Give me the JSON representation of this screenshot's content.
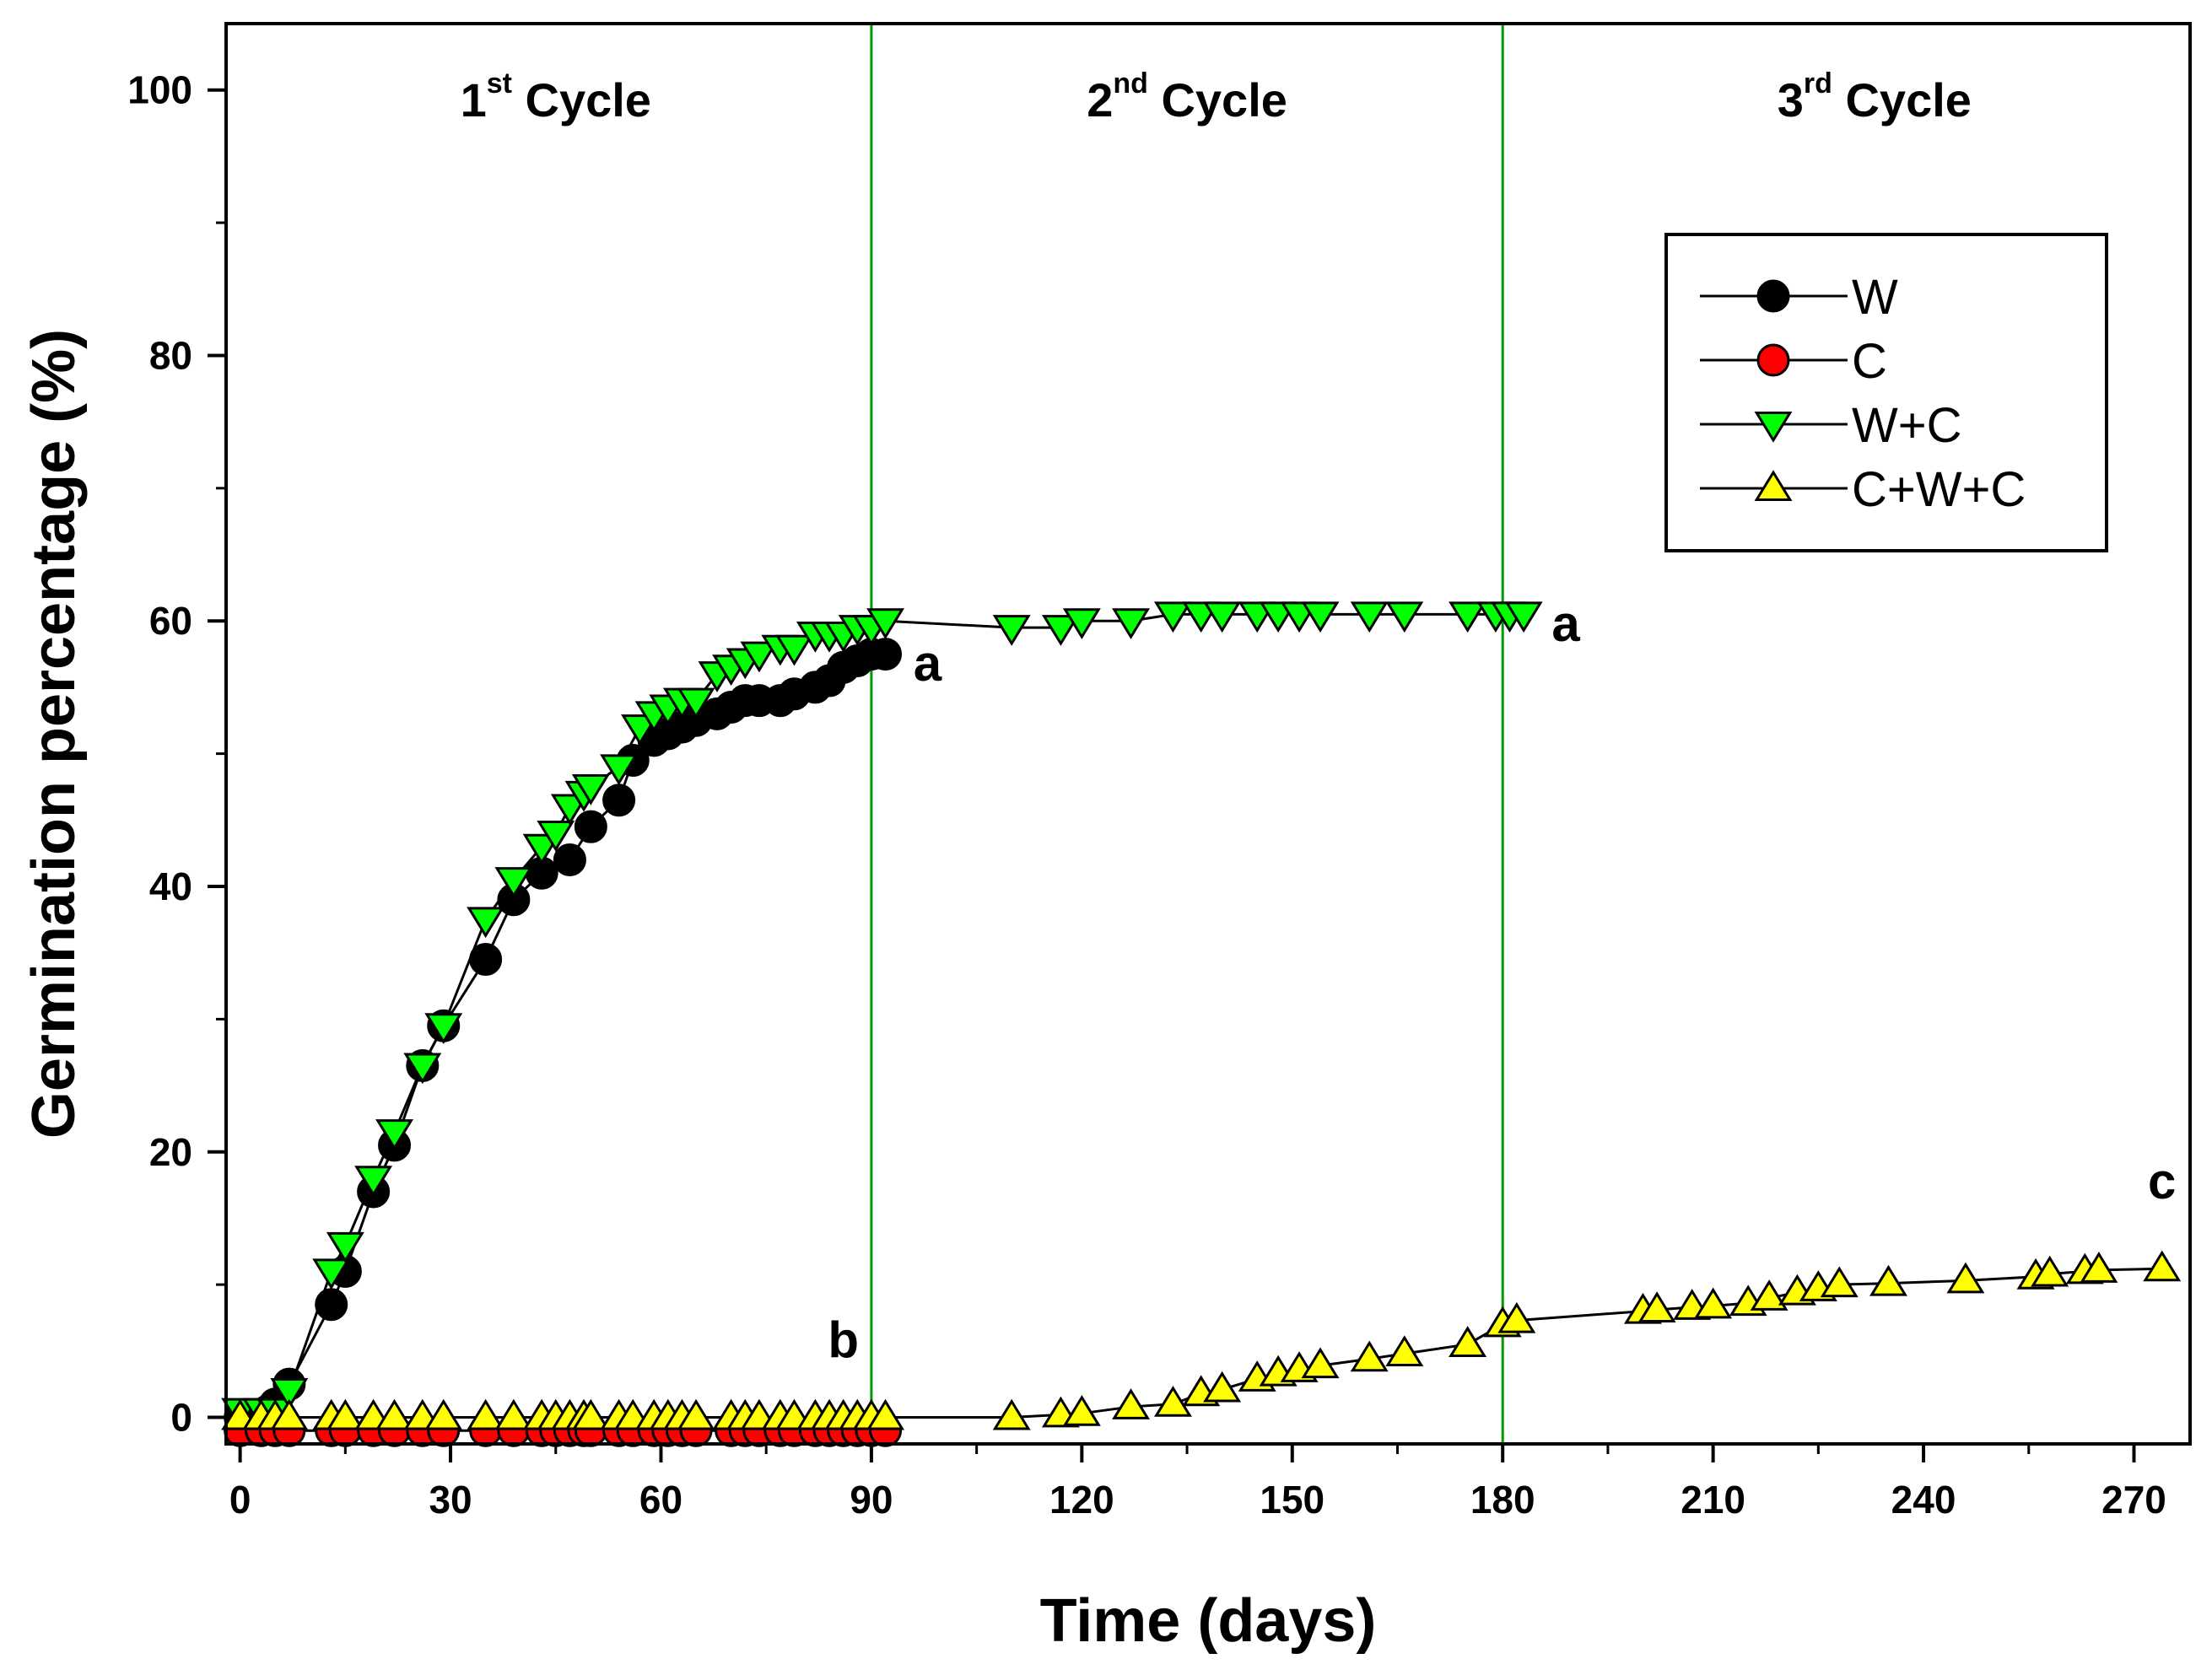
{
  "chart_data": {
    "type": "line",
    "xlabel": "Time (days)",
    "ylabel": "Germination percentage (%)",
    "xlim": [
      -2,
      278
    ],
    "ylim": [
      -2,
      105
    ],
    "xticks": [
      0,
      30,
      60,
      90,
      120,
      150,
      180,
      210,
      240,
      270
    ],
    "yticks": [
      0,
      20,
      40,
      60,
      80,
      100
    ],
    "cycle_dividers": [
      90,
      180
    ],
    "cycles": [
      {
        "base": "1",
        "sup": "st",
        "rest": " Cycle",
        "x": 45
      },
      {
        "base": "2",
        "sup": "nd",
        "rest": " Cycle",
        "x": 135
      },
      {
        "base": "3",
        "sup": "rd",
        "rest": " Cycle",
        "x": 233
      }
    ],
    "legend": {
      "position": "top-right",
      "entries": [
        "W",
        "C",
        "W+C",
        "C+W+C"
      ]
    },
    "annotations": [
      {
        "text": "a",
        "x": 98,
        "y": 55.5
      },
      {
        "text": "a",
        "x": 189,
        "y": 58.5
      },
      {
        "text": "b",
        "x": 86,
        "y": 4.5
      },
      {
        "text": "c",
        "x": 274,
        "y": 16.5
      }
    ],
    "series": [
      {
        "name": "W",
        "marker": "circle",
        "color": "#000000",
        "x": [
          0,
          2,
          4,
          5,
          7,
          13,
          15,
          19,
          22,
          26,
          29,
          35,
          39,
          43,
          47,
          50,
          54,
          56,
          59,
          61,
          63,
          65,
          68,
          70,
          72,
          74,
          77,
          79,
          82,
          84,
          86,
          88,
          90,
          92
        ],
        "y": [
          0,
          0,
          0.5,
          1,
          2.5,
          8.5,
          11,
          17,
          20.5,
          26.5,
          29.5,
          34.5,
          39,
          41,
          42,
          44.5,
          46.5,
          49.5,
          51,
          51.5,
          52,
          52.5,
          53,
          53.5,
          54,
          54,
          54,
          54.5,
          55,
          55.5,
          56.5,
          57,
          57.5,
          57.5
        ]
      },
      {
        "name": "C",
        "marker": "circle",
        "color": "#ff0000",
        "x": [
          0,
          3,
          5,
          7,
          13,
          15,
          19,
          22,
          26,
          29,
          35,
          39,
          43,
          45,
          47,
          49,
          50,
          54,
          56,
          59,
          61,
          63,
          65,
          70,
          72,
          74,
          77,
          79,
          82,
          84,
          86,
          88,
          90,
          92
        ],
        "y": [
          -1,
          -1,
          -1,
          -1,
          -1,
          -1,
          -1,
          -1,
          -1,
          -1,
          -1,
          -1,
          -1,
          -1,
          -1,
          -1,
          -1,
          -1,
          -1,
          -1,
          -1,
          -1,
          -1,
          -1,
          -1,
          -1,
          -1,
          -1,
          -1,
          -1,
          -1,
          -1,
          -1,
          -1
        ]
      },
      {
        "name": "W+C",
        "marker": "triangle-down",
        "color": "#00ff00",
        "x": [
          0,
          3,
          5,
          7,
          13,
          15,
          19,
          22,
          26,
          29,
          35,
          39,
          43,
          45,
          47,
          49,
          50,
          54,
          57,
          59,
          61,
          63,
          65,
          68,
          70,
          72,
          74,
          77,
          79,
          82,
          84,
          86,
          88,
          90,
          92,
          110,
          117,
          120,
          127,
          133,
          137,
          140,
          145,
          148,
          151,
          154,
          161,
          166,
          175,
          179,
          181,
          183
        ],
        "y": [
          0.5,
          0.5,
          0.5,
          2,
          11,
          13,
          18,
          21.5,
          26.5,
          29.5,
          37.5,
          40.5,
          43,
          44,
          46,
          47,
          47.5,
          49,
          52,
          53,
          53.5,
          54,
          54,
          56,
          56.5,
          57,
          57.5,
          58,
          58,
          59,
          59,
          59,
          59.5,
          59.5,
          60,
          59.5,
          59.5,
          60,
          60,
          60.5,
          60.5,
          60.5,
          60.5,
          60.5,
          60.5,
          60.5,
          60.5,
          60.5,
          60.5,
          60.5,
          60.5,
          60.5
        ]
      },
      {
        "name": "C+W+C",
        "marker": "triangle-up",
        "color": "#ffff00",
        "x": [
          0,
          3,
          5,
          7,
          13,
          15,
          19,
          22,
          26,
          29,
          35,
          39,
          43,
          45,
          47,
          49,
          50,
          54,
          56,
          59,
          61,
          63,
          65,
          70,
          72,
          74,
          77,
          79,
          82,
          84,
          86,
          88,
          90,
          92,
          110,
          117,
          120,
          127,
          133,
          137,
          140,
          145,
          148,
          151,
          154,
          161,
          166,
          175,
          180,
          182,
          200,
          202,
          207,
          210,
          215,
          218,
          222,
          225,
          228,
          235,
          246,
          256,
          258,
          263,
          265,
          274
        ],
        "y": [
          0,
          0,
          0,
          0,
          0,
          0,
          0,
          0,
          0,
          0,
          0,
          0,
          0,
          0,
          0,
          0,
          0,
          0,
          0,
          0,
          0,
          0,
          0,
          0,
          0,
          0,
          0,
          0,
          0,
          0,
          0,
          0,
          0,
          0,
          0,
          0.2,
          0.3,
          0.8,
          1,
          1.8,
          2.1,
          2.9,
          3.3,
          3.6,
          3.9,
          4.4,
          4.8,
          5.5,
          7,
          7.3,
          8,
          8.1,
          8.3,
          8.4,
          8.6,
          9,
          9.4,
          9.7,
          10,
          10.1,
          10.3,
          10.6,
          10.8,
          11,
          11.1,
          11.2
        ]
      }
    ]
  }
}
